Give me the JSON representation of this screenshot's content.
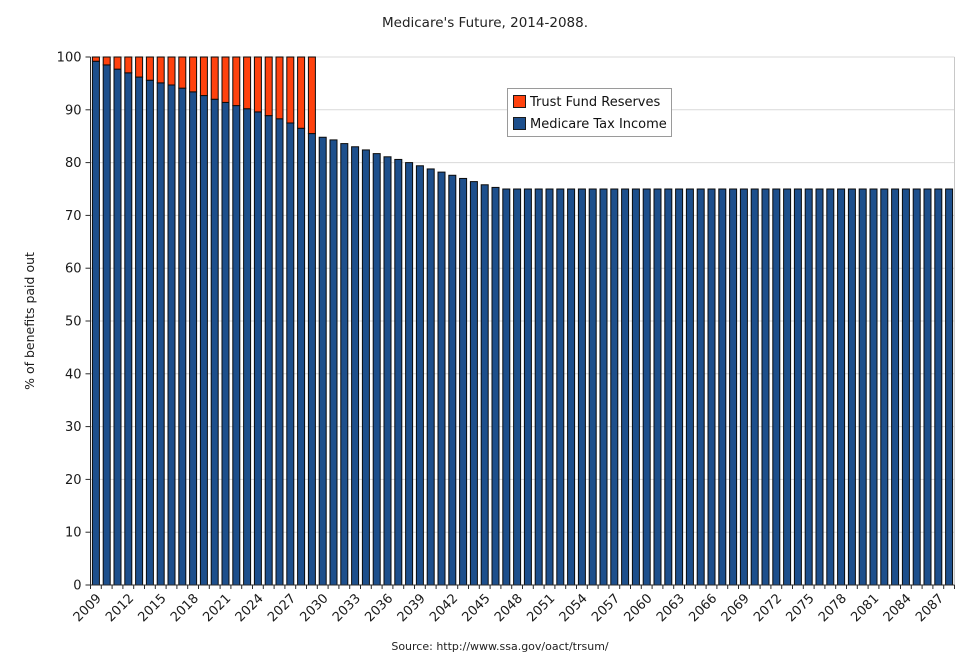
{
  "page": {
    "title": "Medicare's Future, 2014-2088.",
    "y_axis_title": "% of benefits paid out",
    "source_note": "Source: http://www.ssa.gov/oact/trsum/"
  },
  "legend": {
    "items": [
      {
        "label": "Trust Fund Reserves",
        "color": "#ff420e"
      },
      {
        "label": "Medicare Tax Income",
        "color": "#1d4f8c"
      }
    ]
  },
  "colors": {
    "background": "#ffffff",
    "gridline": "#d9d9d9",
    "plot_border": "#c8c8c8",
    "axis": "#2b2b2b",
    "bar_outline": "#0b0b0b",
    "legend_border": "#9a9a9a",
    "trust_fund_reserves": "#ff420e",
    "medicare_tax_income": "#1d4f8c"
  },
  "chart_data": {
    "type": "bar",
    "stacked": true,
    "title": "Medicare's Future, 2014-2088.",
    "xlabel": "",
    "ylabel": "% of benefits paid out",
    "ylim": [
      0,
      100
    ],
    "ytick_step": 10,
    "grid": true,
    "legend_position": "top-center-inside",
    "x_tick_label_interval": 3,
    "x_tick_labels_shown": [
      "2009",
      "2012",
      "2015",
      "2018",
      "2021",
      "2024",
      "2027",
      "2030",
      "2033",
      "2036",
      "2039",
      "2042",
      "2045",
      "2048",
      "2051",
      "2054",
      "2057",
      "2060",
      "2063",
      "2066",
      "2069",
      "2072",
      "2075",
      "2078",
      "2081",
      "2084",
      "2087"
    ],
    "years": [
      2009,
      2010,
      2011,
      2012,
      2013,
      2014,
      2015,
      2016,
      2017,
      2018,
      2019,
      2020,
      2021,
      2022,
      2023,
      2024,
      2025,
      2026,
      2027,
      2028,
      2029,
      2030,
      2031,
      2032,
      2033,
      2034,
      2035,
      2036,
      2037,
      2038,
      2039,
      2040,
      2041,
      2042,
      2043,
      2044,
      2045,
      2046,
      2047,
      2048,
      2049,
      2050,
      2051,
      2052,
      2053,
      2054,
      2055,
      2056,
      2057,
      2058,
      2059,
      2060,
      2061,
      2062,
      2063,
      2064,
      2065,
      2066,
      2067,
      2068,
      2069,
      2070,
      2071,
      2072,
      2073,
      2074,
      2075,
      2076,
      2077,
      2078,
      2079,
      2080,
      2081,
      2082,
      2083,
      2084,
      2085,
      2086,
      2087,
      2088
    ],
    "series": [
      {
        "name": "Medicare Tax Income",
        "color": "#1d4f8c",
        "values": [
          99.2,
          98.5,
          97.7,
          97.0,
          96.2,
          95.6,
          95.1,
          94.7,
          94.1,
          93.4,
          92.7,
          92.0,
          91.4,
          90.8,
          90.2,
          89.6,
          88.9,
          88.3,
          87.5,
          86.5,
          85.5,
          84.8,
          84.3,
          83.6,
          83.0,
          82.4,
          81.7,
          81.1,
          80.6,
          80.0,
          79.4,
          78.8,
          78.2,
          77.6,
          77.0,
          76.4,
          75.8,
          75.3,
          75.0,
          75.0,
          75.0,
          75.0,
          75.0,
          75.0,
          75.0,
          75.0,
          75.0,
          75.0,
          75.0,
          75.0,
          75.0,
          75.0,
          75.0,
          75.0,
          75.0,
          75.0,
          75.0,
          75.0,
          75.0,
          75.0,
          75.0,
          75.0,
          75.0,
          75.0,
          75.0,
          75.0,
          75.0,
          75.0,
          75.0,
          75.0,
          75.0,
          75.0,
          75.0,
          75.0,
          75.0,
          75.0,
          75.0,
          75.0,
          75.0,
          75.0
        ]
      },
      {
        "name": "Trust Fund Reserves",
        "color": "#ff420e",
        "values": [
          0.8,
          1.5,
          2.3,
          3.0,
          3.8,
          4.4,
          4.9,
          5.3,
          5.9,
          6.6,
          7.3,
          8.0,
          8.6,
          9.2,
          9.8,
          10.4,
          11.1,
          11.7,
          12.5,
          13.5,
          14.5,
          0,
          0,
          0,
          0,
          0,
          0,
          0,
          0,
          0,
          0,
          0,
          0,
          0,
          0,
          0,
          0,
          0,
          0,
          0,
          0,
          0,
          0,
          0,
          0,
          0,
          0,
          0,
          0,
          0,
          0,
          0,
          0,
          0,
          0,
          0,
          0,
          0,
          0,
          0,
          0,
          0,
          0,
          0,
          0,
          0,
          0,
          0,
          0,
          0,
          0,
          0,
          0,
          0,
          0,
          0,
          0,
          0,
          0,
          0
        ]
      }
    ]
  }
}
